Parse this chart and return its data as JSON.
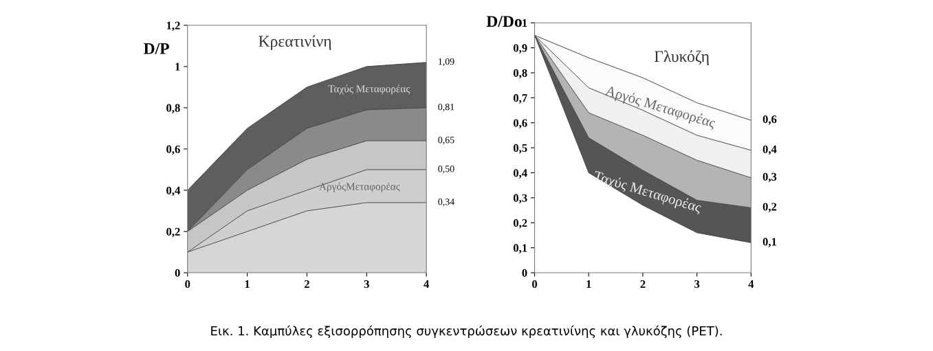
{
  "chart_data": [
    {
      "type": "area",
      "title": "Κρεατινίνη",
      "ylabel": "D/P",
      "x": [
        0,
        1,
        2,
        3,
        4
      ],
      "xlim": [
        0,
        4
      ],
      "xticks": [
        0,
        1,
        2,
        3,
        4
      ],
      "ylim": [
        0,
        1.2
      ],
      "yticks": [
        0,
        {
          "value": 0.2,
          "label": "0,2"
        },
        {
          "value": 0.4,
          "label": "0,4"
        },
        {
          "value": 0.6,
          "label": "0,6"
        },
        {
          "value": 0.8,
          "label": "0,8"
        },
        1,
        {
          "value": 1.2,
          "label": "1,2"
        }
      ],
      "grid": false,
      "series": [
        {
          "color": "#d6d6d6",
          "values": [
            0.1,
            0.2,
            0.3,
            0.34,
            0.34
          ]
        },
        {
          "color": "#cfcfcf",
          "values": [
            0.1,
            0.3,
            0.4,
            0.5,
            0.5
          ]
        },
        {
          "color": "#c6c6c6",
          "values": [
            0.2,
            0.4,
            0.55,
            0.64,
            0.64
          ]
        },
        {
          "color": "#8a8a8a",
          "values": [
            0.2,
            0.5,
            0.7,
            0.79,
            0.8
          ]
        },
        {
          "color": "#5e5e5e",
          "values": [
            0.4,
            0.7,
            0.9,
            1.0,
            1.02
          ]
        }
      ],
      "annotations": [
        "Ταχύς Μεταφορέας",
        "ΑργόςΜεταφορέας",
        "1,09",
        "0,81",
        "0,65",
        "0,50",
        "0,34",
        "Εικ. 1. Καμπύλες εξισορρόπησης συγκεντρώσεων κρεατινίνης και γλυκόζης (PET)."
      ]
    },
    {
      "type": "area",
      "title": "Γλυκόζη",
      "ylabel": "D/Do",
      "x": [
        0,
        1,
        2,
        3,
        4
      ],
      "xlim": [
        0,
        4
      ],
      "xticks": [
        0,
        1,
        2,
        3,
        4
      ],
      "ylim": [
        0,
        1
      ],
      "yticks": [
        0,
        {
          "value": 0.1,
          "label": "0,1"
        },
        {
          "value": 0.2,
          "label": "0,2"
        },
        {
          "value": 0.3,
          "label": "0,3"
        },
        {
          "value": 0.4,
          "label": "0,4"
        },
        {
          "value": 0.5,
          "label": "0,5"
        },
        {
          "value": 0.6,
          "label": "0,6"
        },
        {
          "value": 0.7,
          "label": "0,7"
        },
        {
          "value": 0.8,
          "label": "0,8"
        },
        {
          "value": 0.9,
          "label": "0,9"
        },
        1
      ],
      "grid": false,
      "series": [
        {
          "color": "#ffffff",
          "values": [
            0.95,
            0.4,
            0.27,
            0.16,
            0.12
          ]
        },
        {
          "color": "#555555",
          "values": [
            0.95,
            0.54,
            0.41,
            0.29,
            0.26
          ]
        },
        {
          "color": "#b4b4b4",
          "values": [
            0.95,
            0.64,
            0.55,
            0.45,
            0.38
          ]
        },
        {
          "color": "#f0f0f0",
          "values": [
            0.95,
            0.74,
            0.65,
            0.55,
            0.49
          ]
        },
        {
          "color": "#fbfbfb",
          "values": [
            0.95,
            0.86,
            0.78,
            0.68,
            0.61
          ]
        }
      ],
      "annotations": [
        "Αργός Μεταφορέας",
        "Ταχύς Μεταφορέας",
        "0,6",
        "0,4",
        "0,3",
        "0,2",
        "0,1"
      ]
    }
  ]
}
